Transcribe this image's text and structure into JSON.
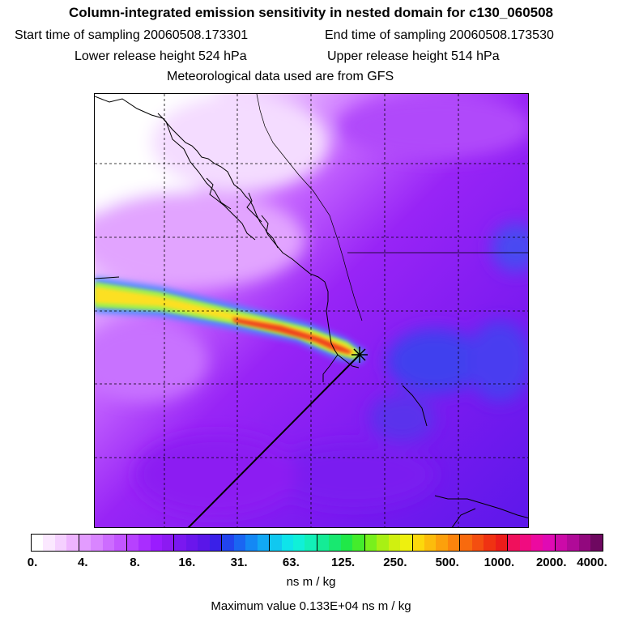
{
  "title": "Column-integrated emission sensitivity in nested domain for c130_060508",
  "info": {
    "start_time": "Start time of sampling 20060508.173301",
    "end_time": "End time of sampling 20060508.173530",
    "lower_height": "Lower release height  524 hPa",
    "upper_height": "Upper release height  514 hPa",
    "met_data": "Meteorological data used are from GFS"
  },
  "colorbar": {
    "tick_labels": [
      "0.",
      "4.",
      "8.",
      "16.",
      "31.",
      "63.",
      "125.",
      "250.",
      "500.",
      "1000.",
      "2000.",
      "4000."
    ],
    "colors": [
      "#ffffff",
      "#fbe8ff",
      "#f5d0ff",
      "#eeb4ff",
      "#e39cff",
      "#d985ff",
      "#cd6cff",
      "#c356ff",
      "#b741ff",
      "#a92dff",
      "#9a1cff",
      "#8c1af2",
      "#7a18f0",
      "#6a16ec",
      "#5a16e8",
      "#3a20e8",
      "#2244ee",
      "#1a66f2",
      "#1488f4",
      "#12a8f4",
      "#10c8f0",
      "#0ee4ea",
      "#10f0d8",
      "#12f0b8",
      "#14ec96",
      "#18e870",
      "#20e848",
      "#44ec2c",
      "#78f01c",
      "#a8f014",
      "#d0f010",
      "#eef00e",
      "#fcd80c",
      "#fcbc0c",
      "#fca00c",
      "#fc840c",
      "#f86a0e",
      "#f44e10",
      "#f03212",
      "#ec1c1a",
      "#f0105c",
      "#f00c80",
      "#ec0aa0",
      "#e00ab4",
      "#cc0aa8",
      "#b00a98",
      "#92087e",
      "#6e0860"
    ],
    "units": "ns m / kg",
    "max_value": "Maximum value  0.133E+04 ns m / kg"
  },
  "map": {
    "release_marker": "star-marker",
    "palette": {
      "upper_left_low": "#f7e6ff",
      "background": "#8c1af2",
      "lower_right": "#6a18ee",
      "blue_patches": "#3c3cf0",
      "plume_outer": "#4a8cff",
      "plume_mid": "#9af05a",
      "plume_core": "#fce020",
      "plume_hot": "#f04020"
    }
  }
}
